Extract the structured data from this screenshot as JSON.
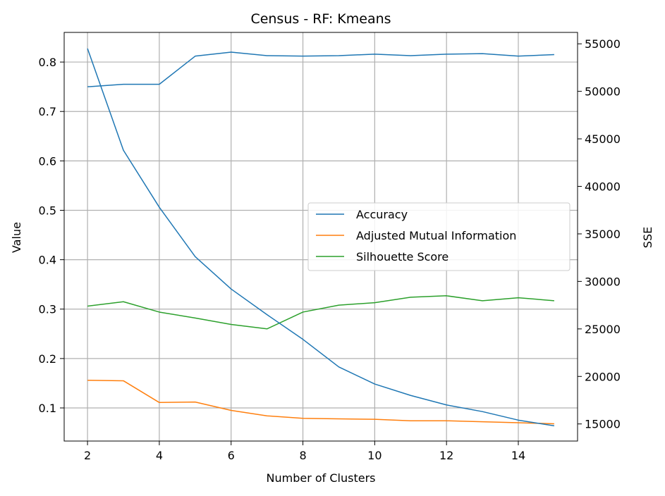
{
  "chart_data": {
    "type": "line",
    "title": "Census - RF: Kmeans",
    "xlabel": "Number of Clusters",
    "ylabel": "Value",
    "y2label": "SSE",
    "x": [
      2,
      3,
      4,
      5,
      6,
      7,
      8,
      9,
      10,
      11,
      12,
      13,
      14,
      15
    ],
    "xticks": [
      2,
      4,
      6,
      8,
      10,
      12,
      14
    ],
    "xlim": [
      1.35,
      15.65
    ],
    "ylim": [
      0.033,
      0.86
    ],
    "yticks": [
      0.1,
      0.2,
      0.3,
      0.4,
      0.5,
      0.6,
      0.7,
      0.8
    ],
    "y2lim": [
      13200,
      56200
    ],
    "y2ticks": [
      15000,
      20000,
      25000,
      30000,
      35000,
      40000,
      45000,
      50000,
      55000
    ],
    "grid": true,
    "legend_position": "center-right",
    "series": [
      {
        "name": "Accuracy",
        "axis": "left",
        "color": "#1f77b4",
        "values": [
          0.75,
          0.755,
          0.755,
          0.812,
          0.82,
          0.813,
          0.812,
          0.813,
          0.816,
          0.813,
          0.816,
          0.817,
          0.812,
          0.815
        ]
      },
      {
        "name": "Adjusted Mutual Information",
        "axis": "left",
        "color": "#ff7f0e",
        "values": [
          0.156,
          0.155,
          0.111,
          0.112,
          0.095,
          0.084,
          0.079,
          0.078,
          0.077,
          0.074,
          0.074,
          0.072,
          0.07,
          0.068
        ]
      },
      {
        "name": "Silhouette Score",
        "axis": "left",
        "color": "#2ca02c",
        "values": [
          0.306,
          0.315,
          0.294,
          0.282,
          0.269,
          0.26,
          0.294,
          0.308,
          0.313,
          0.324,
          0.327,
          0.317,
          0.323,
          0.317
        ]
      },
      {
        "axis": "right",
        "color": "#1f77b4",
        "values": [
          54500,
          43800,
          37800,
          32600,
          29200,
          26500,
          23900,
          21000,
          19200,
          18000,
          17000,
          16300,
          15400,
          14800
        ]
      }
    ]
  }
}
